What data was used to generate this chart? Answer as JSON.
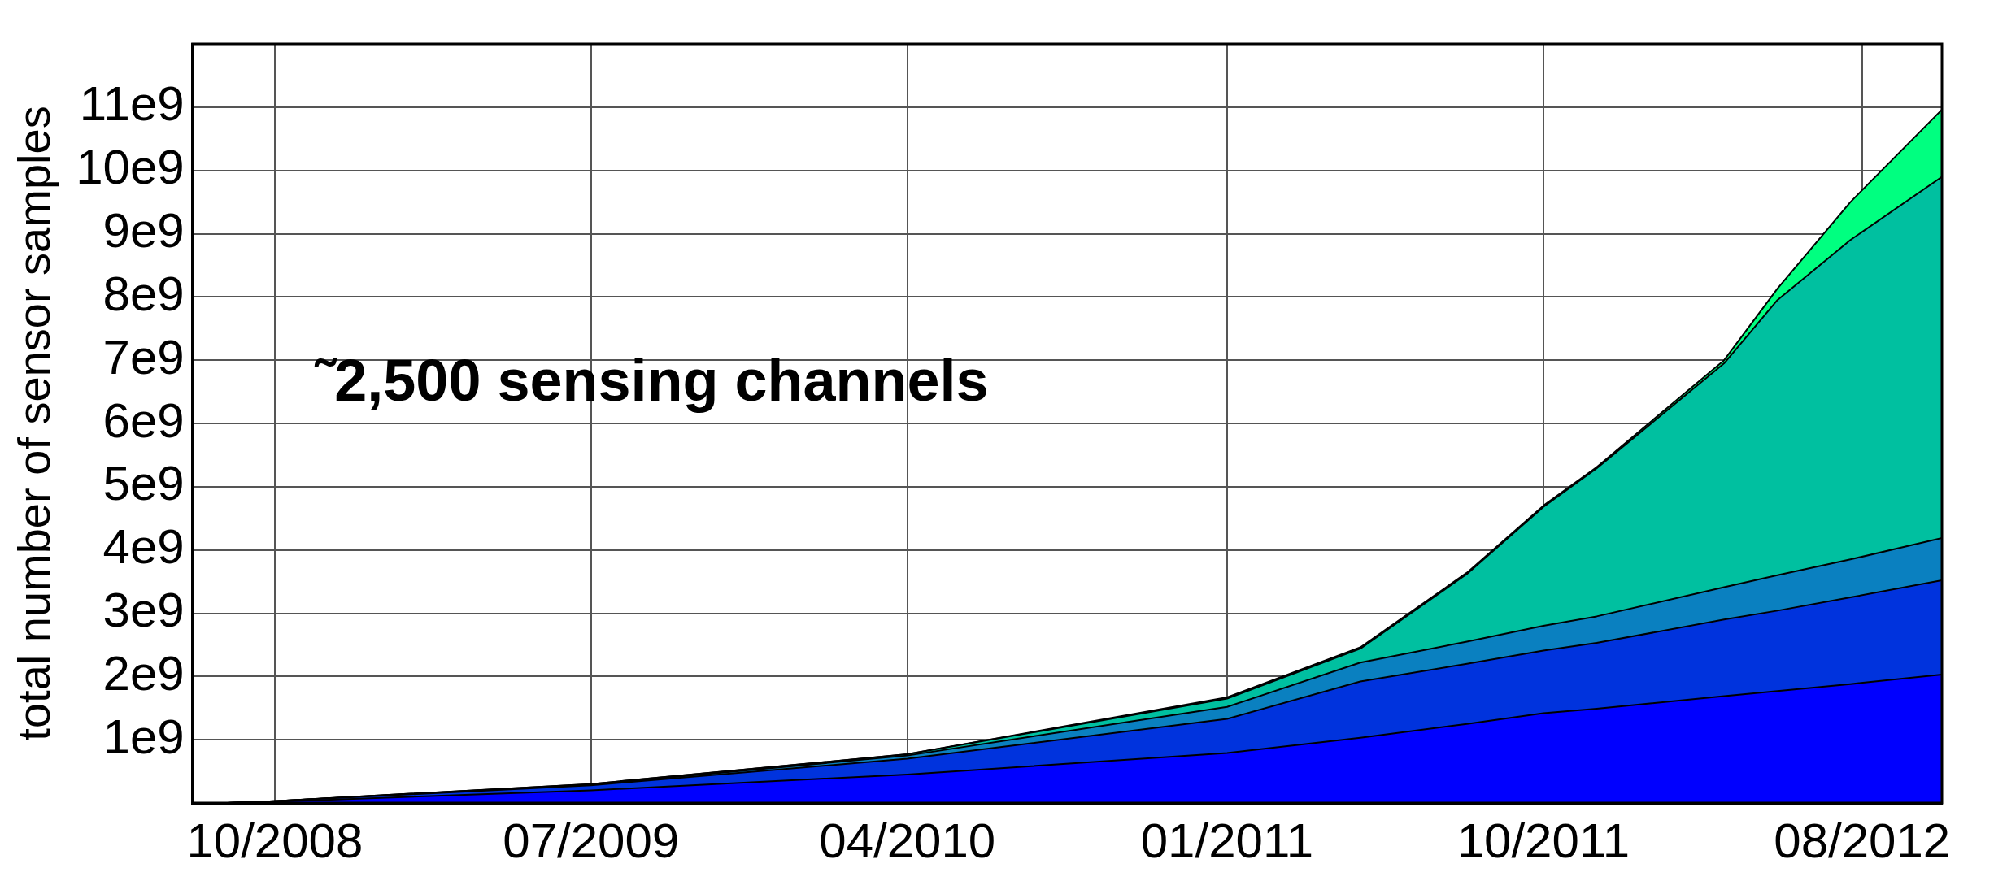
{
  "chart_data": {
    "type": "area",
    "stacked": true,
    "ylabel": "total number of sensor samples",
    "annotations": [
      "˜2,500 sensing channels"
    ],
    "x": [
      "2008-09-20",
      "2008-10-31",
      "2009-07-31",
      "2010-04-30",
      "2011-01-31",
      "2011-05-26",
      "2011-08-26",
      "2011-10-31",
      "2011-12-16",
      "2012-04-04",
      "2012-05-20",
      "2012-07-22",
      "2012-10-09"
    ],
    "series": [
      {
        "color": "#0000ff",
        "values": [
          0,
          20000000.0,
          200000000.0,
          450000000.0,
          790000000.0,
          1030000000.0,
          1250000000.0,
          1420000000.0,
          1490000000.0,
          1690000000.0,
          1770000000.0,
          1880000000.0,
          2030000000.0
        ]
      },
      {
        "color": "#0033dd",
        "values": [
          0,
          10000000.0,
          80000000.0,
          250000000.0,
          540000000.0,
          890000000.0,
          950000000.0,
          990000000.0,
          1040000000.0,
          1210000000.0,
          1270000000.0,
          1370000000.0,
          1490000000.0
        ]
      },
      {
        "color": "#0a80c0",
        "values": [
          0,
          0,
          10000000.0,
          50000000.0,
          190000000.0,
          300000000.0,
          350000000.0,
          390000000.0,
          420000000.0,
          510000000.0,
          560000000.0,
          600000000.0,
          670000000.0
        ]
      },
      {
        "color": "#00c0a0",
        "values": [
          0,
          0,
          10000000.0,
          20000000.0,
          130000000.0,
          220000000.0,
          1070000000.0,
          1880000000.0,
          2340000000.0,
          3540000000.0,
          4350000000.0,
          5050000000.0,
          5710000000.0
        ]
      },
      {
        "color": "#00ff80",
        "values": [
          0,
          0,
          0,
          0,
          20000000.0,
          20000000.0,
          20000000.0,
          20000000.0,
          20000000.0,
          50000000.0,
          180000000.0,
          600000000.0,
          1060000000.0
        ]
      }
    ],
    "xlim": [
      "2008-08-21",
      "2012-10-09"
    ],
    "xticks": [
      {
        "value": "2008-10-31",
        "label": "10/2008"
      },
      {
        "value": "2009-07-31",
        "label": "07/2009"
      },
      {
        "value": "2010-04-30",
        "label": "04/2010"
      },
      {
        "value": "2011-01-31",
        "label": "01/2011"
      },
      {
        "value": "2011-10-31",
        "label": "10/2011"
      },
      {
        "value": "2012-08-01",
        "label": "08/2012"
      }
    ],
    "ylim": [
      0,
      12000000000.0
    ],
    "yticks": [
      {
        "value": 1000000000.0,
        "label": "1e9"
      },
      {
        "value": 2000000000.0,
        "label": "2e9"
      },
      {
        "value": 3000000000.0,
        "label": "3e9"
      },
      {
        "value": 4000000000.0,
        "label": "4e9"
      },
      {
        "value": 5000000000.0,
        "label": "5e9"
      },
      {
        "value": 6000000000.0,
        "label": "6e9"
      },
      {
        "value": 7000000000.0,
        "label": "7e9"
      },
      {
        "value": 8000000000.0,
        "label": "8e9"
      },
      {
        "value": 9000000000.0,
        "label": "9e9"
      },
      {
        "value": 10000000000.0,
        "label": "10e9"
      },
      {
        "value": 11000000000.0,
        "label": "11e9"
      }
    ],
    "grid": true,
    "legend": false
  }
}
